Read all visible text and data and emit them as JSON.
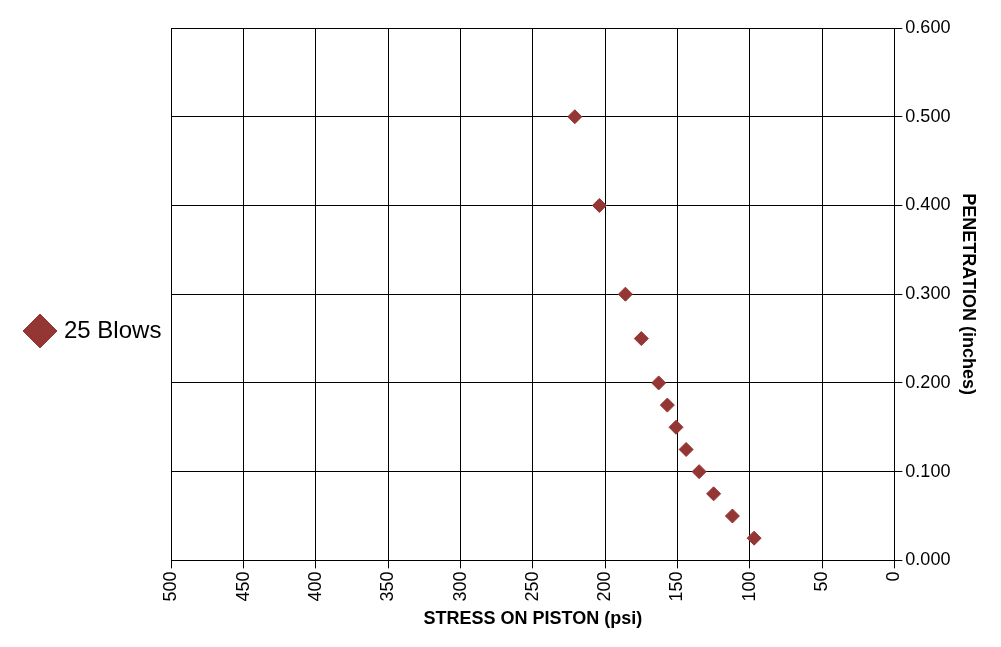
{
  "chart_data": {
    "type": "scatter",
    "xlabel": "STRESS ON PISTON (psi)",
    "ylabel": "PENETRATION (inches)",
    "x": [
      221,
      204,
      186,
      175,
      163,
      157,
      151,
      144,
      135,
      125,
      112,
      97
    ],
    "series": [
      {
        "name": "25 Blows",
        "color": "#943634",
        "values": [
          0.5,
          0.4,
          0.3,
          0.25,
          0.2,
          0.175,
          0.15,
          0.125,
          0.1,
          0.075,
          0.05,
          0.025
        ]
      }
    ],
    "xlim": [
      500,
      0
    ],
    "xticks": [
      500,
      450,
      400,
      350,
      300,
      250,
      200,
      150,
      100,
      50,
      0
    ],
    "ylim": [
      0,
      0.6
    ],
    "yticks": [
      {
        "value": 0,
        "label": "0.000"
      },
      {
        "value": 0.1,
        "label": "0.100"
      },
      {
        "value": 0.2,
        "label": "0.200"
      },
      {
        "value": 0.3,
        "label": "0.300"
      },
      {
        "value": 0.4,
        "label": "0.400"
      },
      {
        "value": 0.5,
        "label": "0.500"
      },
      {
        "value": 0.6,
        "label": "0.600"
      }
    ],
    "grid": true,
    "legend": "left",
    "marker": "diamond"
  }
}
